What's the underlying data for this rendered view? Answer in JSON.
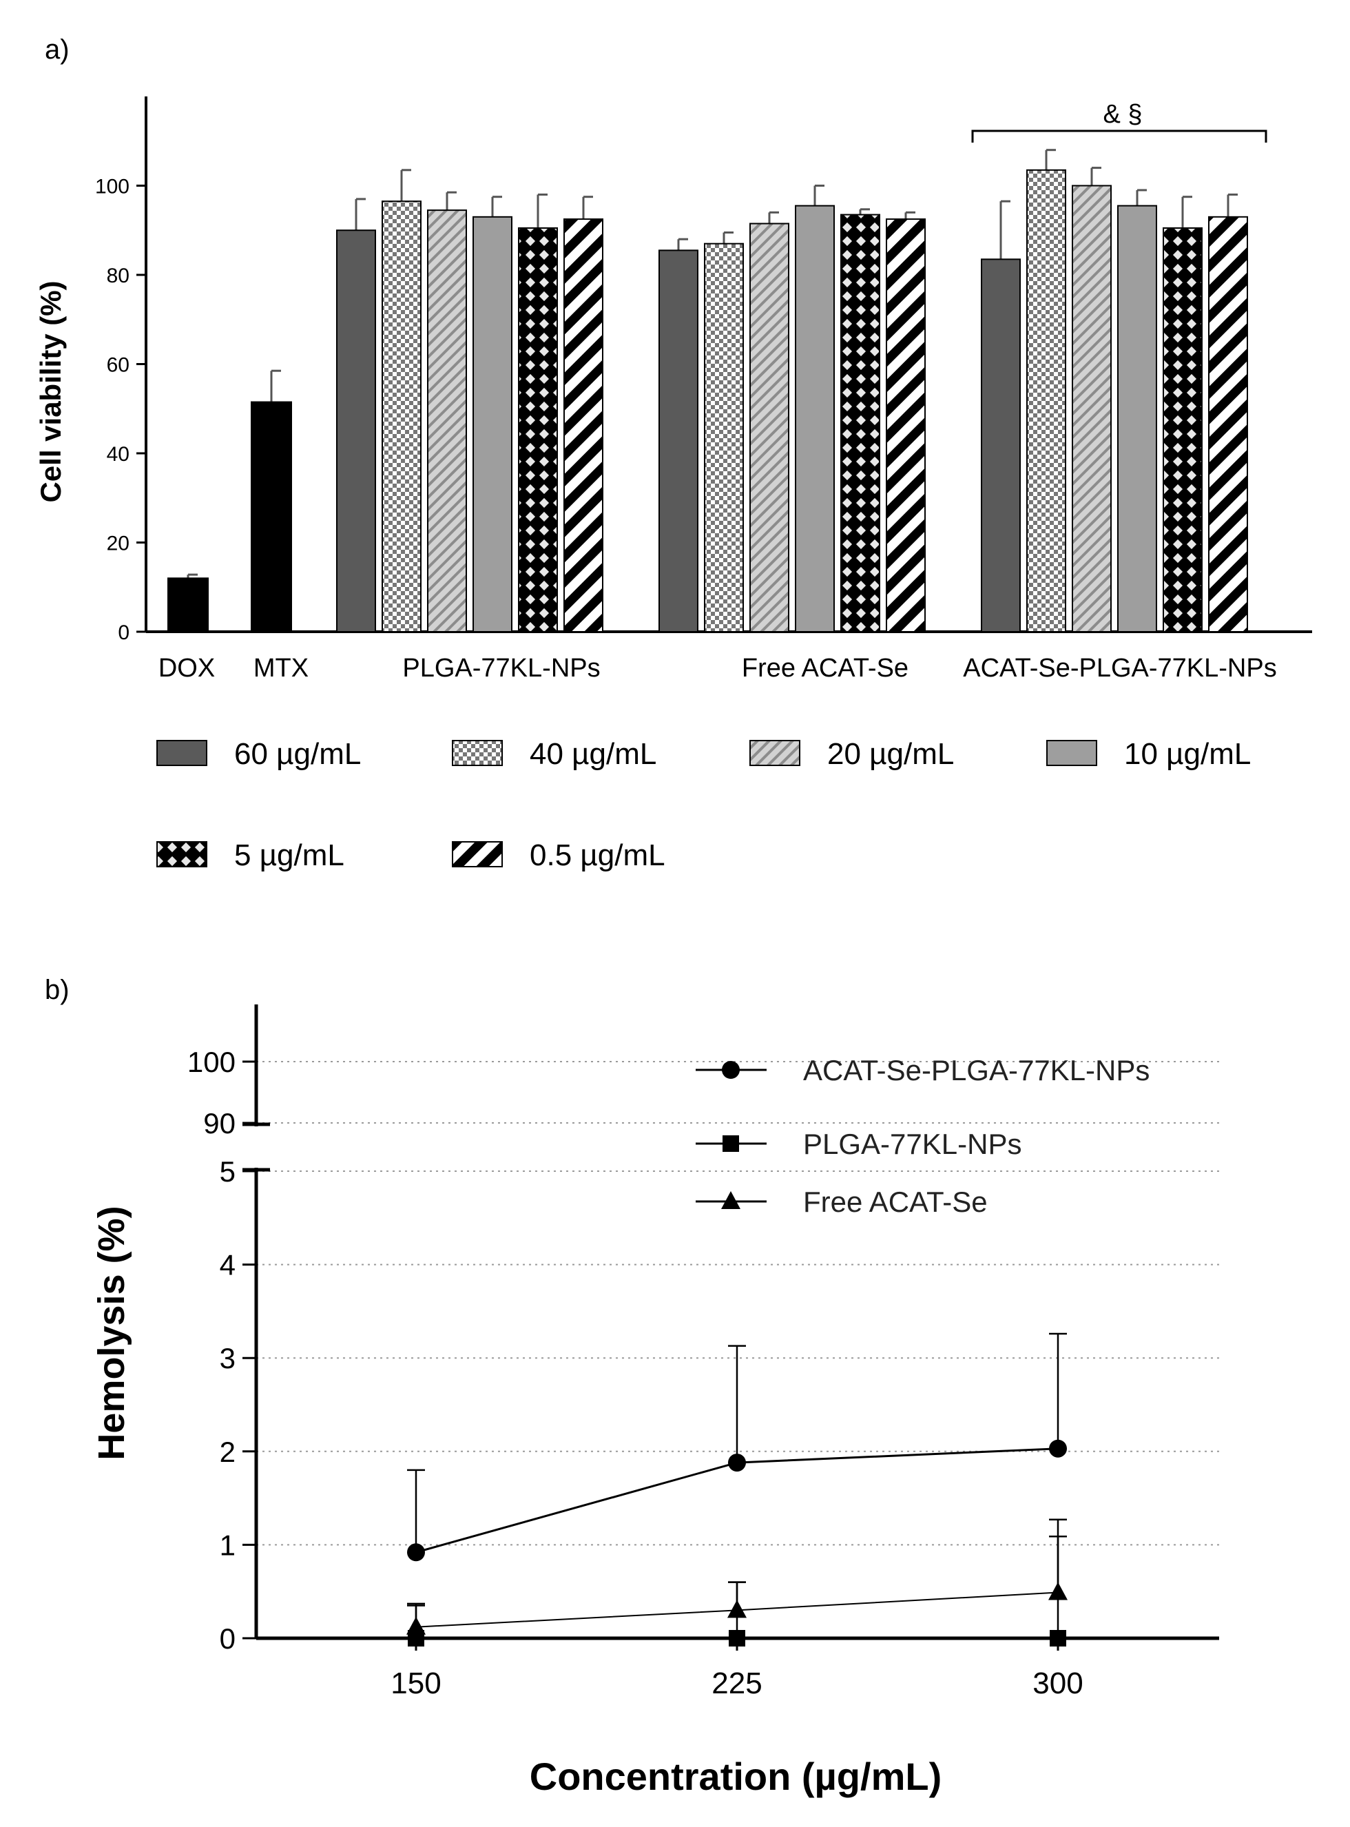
{
  "panels": {
    "a_label": "a)",
    "b_label": "b)"
  },
  "chart_data": [
    {
      "type": "bar",
      "panel": "a",
      "ylabel": "Cell viability (%)",
      "xlabel": "",
      "ylim": [
        0,
        120
      ],
      "yticks": [
        0,
        20,
        40,
        60,
        80,
        100
      ],
      "grid": false,
      "legend_position": "bottom",
      "concentrations": [
        "60 µg/mL",
        "40 µg/mL",
        "20 µg/mL",
        "10 µg/mL",
        "5 µg/mL",
        "0.5 µg/mL"
      ],
      "controls": [
        {
          "label": "DOX",
          "value": 12,
          "error": 0.8,
          "color": "#000000"
        },
        {
          "label": "MTX",
          "value": 51.5,
          "error": 7,
          "color": "#000000"
        }
      ],
      "groups": [
        {
          "label": "PLGA-77KL-NPs",
          "values": [
            90,
            96.5,
            94.5,
            93,
            90.5,
            92.5
          ],
          "errors": [
            7,
            7,
            4,
            4.5,
            7.5,
            5
          ]
        },
        {
          "label": "Free ACAT-Se",
          "values": [
            85.5,
            87,
            91.5,
            95.5,
            93.5,
            92.5
          ],
          "errors": [
            2.5,
            2.5,
            2.5,
            4.5,
            1.2,
            1.5
          ]
        },
        {
          "label": "ACAT-Se-PLGA-77KL-NPs",
          "values": [
            83.5,
            103.5,
            100,
            95.5,
            90.5,
            93
          ],
          "errors": [
            13,
            4.5,
            4,
            3.5,
            7,
            5
          ]
        }
      ],
      "annotation": "& §",
      "legend": [
        {
          "label": "60 µg/mL",
          "pattern": "solid-dark",
          "color": "#5a5a5a"
        },
        {
          "label": "40 µg/mL",
          "pattern": "checker",
          "color": "#8a8a8a"
        },
        {
          "label": "20 µg/mL",
          "pattern": "diagonal-light",
          "color": "#9a9a9a"
        },
        {
          "label": "10 µg/mL",
          "pattern": "solid-light",
          "color": "#9e9e9e"
        },
        {
          "label": "5 µg/mL",
          "pattern": "crosshatch",
          "color": "#000000"
        },
        {
          "label": "0.5 µg/mL",
          "pattern": "diagonal-bold",
          "color": "#000000"
        }
      ]
    },
    {
      "type": "line",
      "panel": "b",
      "ylabel": "Hemolysis (%)",
      "xlabel": "Concentration (µg/mL)",
      "x": [
        150,
        225,
        300
      ],
      "xticks": [
        "150",
        "225",
        "300"
      ],
      "yaxis_break": {
        "lower": [
          0,
          5
        ],
        "upper": [
          90,
          100
        ]
      },
      "yticks_lower": [
        0,
        1,
        2,
        3,
        4,
        5
      ],
      "yticks_upper": [
        90,
        100
      ],
      "grid": "horizontal dotted",
      "legend_position": "top-right",
      "series": [
        {
          "name": "ACAT-Se-PLGA-77KL-NPs",
          "marker": "circle",
          "values": [
            0.92,
            1.88,
            2.03
          ],
          "errors": [
            0.88,
            1.25,
            1.23
          ]
        },
        {
          "name": "PLGA-77KL-NPs",
          "marker": "square",
          "values": [
            0.0,
            0.0,
            0.0
          ],
          "errors": [
            0.35,
            0.6,
            1.27
          ]
        },
        {
          "name": "Free ACAT-Se",
          "marker": "triangle",
          "values": [
            0.12,
            0.3,
            0.49
          ],
          "errors": [
            0.25,
            0.3,
            0.6
          ]
        }
      ]
    }
  ]
}
